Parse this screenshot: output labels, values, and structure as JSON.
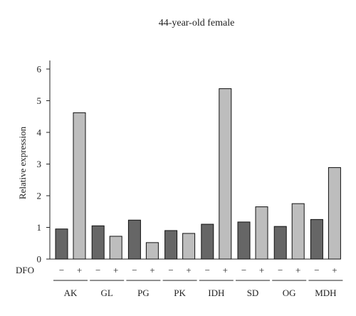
{
  "chart_data": {
    "type": "bar",
    "title": "44-year-old female",
    "ylabel": "Relative expression",
    "xlabel": "",
    "ylim": [
      0,
      6
    ],
    "yticks": [
      "0",
      "1",
      "2",
      "3",
      "4",
      "5",
      "6"
    ],
    "treatment_label": "DFO",
    "treatment_marks": [
      "−",
      "+"
    ],
    "categories": [
      "AK",
      "GL",
      "PG",
      "PK",
      "IDH",
      "SD",
      "OG",
      "MDH"
    ],
    "series": [
      {
        "values": [
          0.95,
          1.05,
          1.23,
          0.9,
          1.1,
          1.17,
          1.03,
          1.25
        ],
        "color": "#666666"
      },
      {
        "values": [
          4.62,
          0.72,
          0.52,
          0.81,
          5.38,
          1.65,
          1.75,
          2.89
        ],
        "color": "#bdbdbd"
      }
    ],
    "grid": false,
    "legend": "none"
  }
}
